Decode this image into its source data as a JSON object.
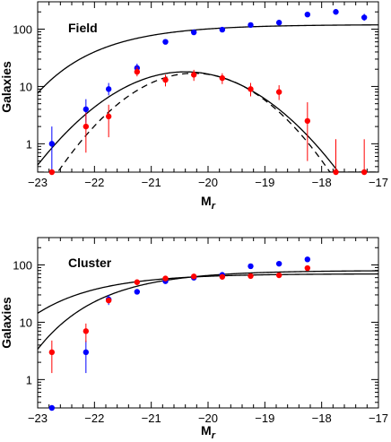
{
  "chart_data": [
    {
      "type": "scatter",
      "title": "Field",
      "xlabel": "M",
      "xlabel_sub": "r",
      "ylabel": "Galaxies",
      "xlim": [
        -23,
        -17
      ],
      "ylim": [
        0.32,
        300
      ],
      "yscale": "log",
      "xticks": [
        -23,
        -22,
        -21,
        -20,
        -19,
        -18,
        -17
      ],
      "xtick_labels": [
        "−23",
        "−22",
        "−21",
        "−20",
        "−19",
        "−18",
        "−17"
      ],
      "yticks": [
        1,
        10,
        100
      ],
      "ytick_labels": [
        "1",
        "10",
        "100"
      ],
      "series": [
        {
          "color": "#0000ff",
          "points": [
            {
              "x": -22.75,
              "y": 1.0,
              "lo": 0.35,
              "hi": 2.0
            },
            {
              "x": -22.15,
              "y": 4.0,
              "lo": 2.3,
              "hi": 6.0
            },
            {
              "x": -21.75,
              "y": 9.0,
              "lo": 7.0,
              "hi": 11.5
            },
            {
              "x": -21.25,
              "y": 21,
              "lo": 17,
              "hi": 25
            },
            {
              "x": -20.75,
              "y": 60
            },
            {
              "x": -20.25,
              "y": 88
            },
            {
              "x": -19.75,
              "y": 98
            },
            {
              "x": -19.25,
              "y": 118
            },
            {
              "x": -18.75,
              "y": 130
            },
            {
              "x": -18.25,
              "y": 180
            },
            {
              "x": -17.75,
              "y": 200
            },
            {
              "x": -17.25,
              "y": 160,
              "lo": 140,
              "hi": 185
            }
          ]
        },
        {
          "color": "#ff0000",
          "points": [
            {
              "x": -22.75,
              "y": 0.32
            },
            {
              "x": -22.15,
              "y": 2.0,
              "lo": 0.7,
              "hi": 3.5
            },
            {
              "x": -21.75,
              "y": 3.0,
              "lo": 1.3,
              "hi": 4.8
            },
            {
              "x": -21.25,
              "y": 18,
              "lo": 15,
              "hi": 22
            },
            {
              "x": -20.75,
              "y": 13,
              "lo": 10,
              "hi": 16
            },
            {
              "x": -20.25,
              "y": 16,
              "lo": 12.5,
              "hi": 19.5
            },
            {
              "x": -19.75,
              "y": 14,
              "lo": 11,
              "hi": 17
            },
            {
              "x": -19.25,
              "y": 9,
              "lo": 6.7,
              "hi": 11.5
            },
            {
              "x": -18.75,
              "y": 8,
              "lo": 5.8,
              "hi": 10.5
            },
            {
              "x": -18.25,
              "y": 2.5,
              "lo": 0.5,
              "hi": 5.3
            },
            {
              "x": -17.75,
              "y": 0.32,
              "lo": 0.32,
              "hi": 1.2
            },
            {
              "x": -17.25,
              "y": 0.32,
              "lo": 0.32,
              "hi": 1.2
            }
          ]
        }
      ],
      "curves": [
        {
          "style": "solid",
          "fn": "schechter",
          "phi": 120,
          "mstar": -21.9,
          "alpha": -1.0
        },
        {
          "style": "solid",
          "fn": "gauss",
          "peak": 18,
          "mu": -20.4,
          "sigma": 0.95
        },
        {
          "style": "dashed",
          "fn": "gauss",
          "peak": 17,
          "mu": -20.25,
          "sigma": 0.85
        }
      ]
    },
    {
      "type": "scatter",
      "title": "Cluster",
      "xlabel": "M",
      "xlabel_sub": "r",
      "ylabel": "Galaxies",
      "xlim": [
        -23,
        -17
      ],
      "ylim": [
        0.32,
        300
      ],
      "yscale": "log",
      "xticks": [
        -23,
        -22,
        -21,
        -20,
        -19,
        -18,
        -17
      ],
      "xtick_labels": [
        "−23",
        "−22",
        "−21",
        "−20",
        "−19",
        "−18",
        "−17"
      ],
      "yticks": [
        1,
        10,
        100
      ],
      "ytick_labels": [
        "1",
        "10",
        "100"
      ],
      "series": [
        {
          "color": "#0000ff",
          "points": [
            {
              "x": -22.75,
              "y": 0.32
            },
            {
              "x": -22.15,
              "y": 3.0,
              "lo": 1.3,
              "hi": 4.8
            },
            {
              "x": -21.75,
              "y": 25,
              "lo": 20,
              "hi": 30
            },
            {
              "x": -21.25,
              "y": 34
            },
            {
              "x": -20.75,
              "y": 52
            },
            {
              "x": -20.25,
              "y": 60
            },
            {
              "x": -19.75,
              "y": 67
            },
            {
              "x": -19.25,
              "y": 95
            },
            {
              "x": -18.75,
              "y": 105
            },
            {
              "x": -18.25,
              "y": 125
            }
          ]
        },
        {
          "color": "#ff0000",
          "points": [
            {
              "x": -22.75,
              "y": 3.0,
              "lo": 1.3,
              "hi": 4.8
            },
            {
              "x": -22.15,
              "y": 7.0,
              "lo": 4.5,
              "hi": 9.5
            },
            {
              "x": -21.75,
              "y": 24
            },
            {
              "x": -21.25,
              "y": 50
            },
            {
              "x": -20.75,
              "y": 58
            },
            {
              "x": -20.25,
              "y": 63
            },
            {
              "x": -19.75,
              "y": 62
            },
            {
              "x": -19.25,
              "y": 64
            },
            {
              "x": -18.75,
              "y": 66
            },
            {
              "x": -18.25,
              "y": 88
            }
          ]
        }
      ],
      "curves": [
        {
          "style": "solid",
          "fn": "schechter",
          "phi": 70,
          "mstar": -22.5,
          "alpha": -1.0
        },
        {
          "style": "solid",
          "fn": "schechter",
          "phi": 80,
          "mstar": -21.75,
          "alpha": -1.0
        }
      ]
    }
  ]
}
